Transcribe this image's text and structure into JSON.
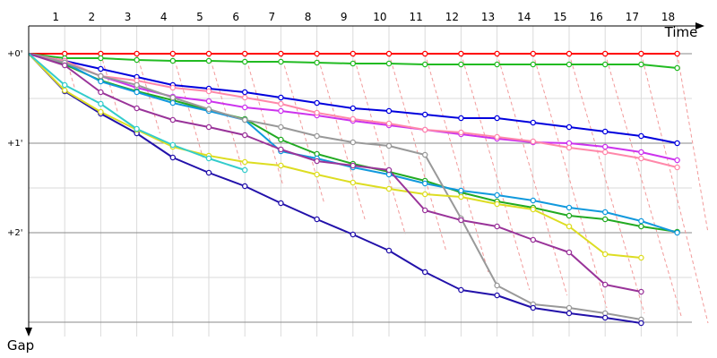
{
  "chart_data": {
    "type": "line",
    "chart_style": "lap-chart",
    "xlabel": "Time",
    "ylabel": "Gap",
    "lap_labels": [
      "1",
      "2",
      "3",
      "4",
      "5",
      "6",
      "7",
      "8",
      "9",
      "10",
      "11",
      "12",
      "13",
      "14",
      "15",
      "16",
      "17",
      "18"
    ],
    "y_tick_labels": [
      "+0'",
      "+1'",
      "+2'"
    ],
    "y_tick_values": [
      0,
      1,
      2
    ],
    "ylim": [
      0,
      3.17
    ],
    "x_axis_position": "top",
    "y_axis_direction": "down",
    "grid": true,
    "series": [
      {
        "color": "#ff0000",
        "values": [
          0,
          0,
          0,
          0,
          0,
          0,
          0,
          0,
          0,
          0,
          0,
          0,
          0,
          0,
          0,
          0,
          0,
          0,
          0
        ]
      },
      {
        "color": "#22bb22",
        "values": [
          0,
          0.05,
          0.05,
          0.07,
          0.08,
          0.08,
          0.09,
          0.09,
          0.1,
          0.11,
          0.11,
          0.12,
          0.12,
          0.12,
          0.12,
          0.12,
          0.12,
          0.12,
          0.16
        ]
      },
      {
        "color": "#0000dd",
        "values": [
          0,
          0.08,
          0.17,
          0.26,
          0.35,
          0.39,
          0.43,
          0.49,
          0.55,
          0.61,
          0.64,
          0.68,
          0.72,
          0.72,
          0.77,
          0.82,
          0.87,
          0.92,
          1.0
        ]
      },
      {
        "color": "#cc33ee",
        "values": [
          0,
          0.09,
          0.25,
          0.38,
          0.48,
          0.53,
          0.6,
          0.64,
          0.69,
          0.75,
          0.8,
          0.85,
          0.9,
          0.95,
          0.99,
          1.0,
          1.04,
          1.1,
          1.19
        ]
      },
      {
        "color": "#ff88aa",
        "values": [
          0,
          0.08,
          0.25,
          0.3,
          0.38,
          0.42,
          0.49,
          0.56,
          0.66,
          0.73,
          0.78,
          0.85,
          0.88,
          0.93,
          0.98,
          1.05,
          1.1,
          1.17,
          1.27
        ]
      },
      {
        "color": "#22aa22",
        "values": [
          0,
          0.12,
          0.3,
          0.42,
          0.52,
          0.63,
          0.73,
          0.96,
          1.12,
          1.23,
          1.32,
          1.42,
          1.55,
          1.65,
          1.72,
          1.81,
          1.85,
          1.93,
          1.99
        ]
      },
      {
        "color": "#1199dd",
        "values": [
          0,
          0.1,
          0.31,
          0.43,
          0.55,
          0.64,
          0.74,
          1.09,
          1.17,
          1.27,
          1.35,
          1.45,
          1.53,
          1.58,
          1.64,
          1.72,
          1.77,
          1.87,
          2.0
        ]
      },
      {
        "color": "#999999",
        "values": [
          0,
          0.1,
          0.25,
          0.35,
          0.49,
          0.62,
          0.74,
          0.82,
          0.92,
          0.99,
          1.03,
          1.13,
          1.84,
          2.59,
          2.8,
          2.84,
          2.9,
          2.97
        ]
      },
      {
        "color": "#2211aa",
        "values": [
          0,
          0.42,
          0.67,
          0.89,
          1.16,
          1.33,
          1.48,
          1.67,
          1.85,
          2.02,
          2.2,
          2.44,
          2.64,
          2.7,
          2.84,
          2.9,
          2.95,
          3.01
        ]
      },
      {
        "color": "#dddd22",
        "values": [
          0,
          0.41,
          0.65,
          0.85,
          1.04,
          1.14,
          1.21,
          1.25,
          1.35,
          1.44,
          1.51,
          1.57,
          1.6,
          1.68,
          1.74,
          1.93,
          2.24,
          2.28
        ]
      },
      {
        "color": "#993399",
        "values": [
          0,
          0.13,
          0.43,
          0.61,
          0.74,
          0.82,
          0.91,
          1.07,
          1.2,
          1.25,
          1.3,
          1.75,
          1.86,
          1.93,
          2.08,
          2.22,
          2.58,
          2.66
        ]
      },
      {
        "color": "#33cccc",
        "values": [
          0,
          0.35,
          0.56,
          0.84,
          1.02,
          1.17,
          1.3
        ]
      }
    ]
  }
}
